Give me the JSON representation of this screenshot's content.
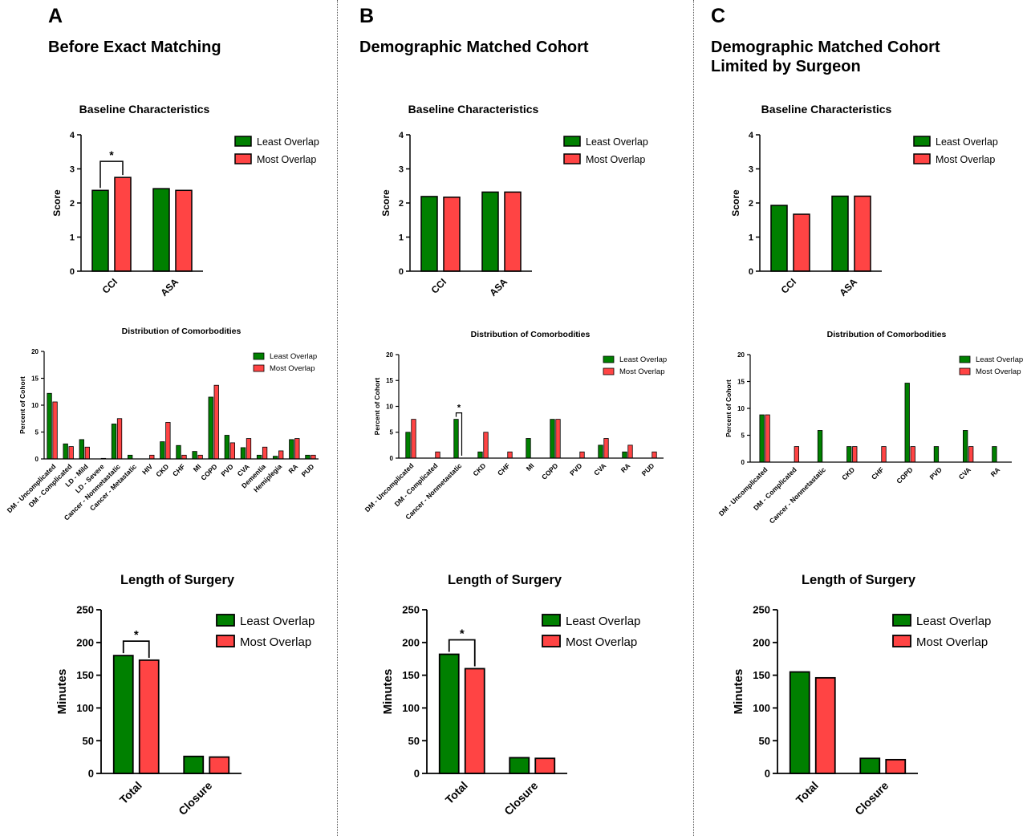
{
  "colors": {
    "least": "#008000",
    "most": "#ff4444",
    "stroke": "#000000"
  },
  "panels": [
    {
      "letter": "A",
      "title_lines": [
        "Before Exact Matching"
      ],
      "baseline": {
        "title": "Baseline Characteristics",
        "ylabel": "Score",
        "ylim": [
          0,
          4
        ],
        "ticks": [
          "0",
          "1",
          "2",
          "3",
          "4"
        ],
        "categories": [
          "CCI",
          "ASA"
        ],
        "series": [
          {
            "name": "Least Overlap",
            "values": [
              2.37,
              2.42
            ]
          },
          {
            "name": "Most Overlap",
            "values": [
              2.75,
              2.37
            ]
          }
        ],
        "annotation": {
          "text": "*",
          "category_index": 0
        }
      },
      "comorb": {
        "title": "Distribution of Comorbodities",
        "ylabel": "Percent of Cohort",
        "ylim": [
          0,
          20
        ],
        "ticks": [
          "0",
          "5",
          "10",
          "15",
          "20"
        ],
        "categories": [
          "DM - Uncomplicated",
          "DM - Complicated",
          "LD - Mild",
          "LD - Severe",
          "Cancer - Nonmetastatic",
          "Cancer - Metastatic",
          "HIV",
          "CKD",
          "CHF",
          "MI",
          "COPD",
          "PVD",
          "CVA",
          "Dementia",
          "Hemiplegia",
          "RA",
          "PUD"
        ],
        "series": [
          {
            "name": "Least Overlap",
            "values": [
              12.2,
              2.8,
              3.6,
              0,
              6.5,
              0.7,
              0,
              3.2,
              2.5,
              1.4,
              11.5,
              4.4,
              2.1,
              0.7,
              0.5,
              3.6,
              0.7
            ]
          },
          {
            "name": "Most Overlap",
            "values": [
              10.6,
              2.3,
              2.2,
              0.1,
              7.5,
              0,
              0.7,
              6.8,
              0.7,
              0.7,
              13.7,
              3.0,
              3.8,
              2.2,
              1.5,
              3.8,
              0.7
            ]
          }
        ],
        "annotation": null
      },
      "surgery": {
        "title": "Length of Surgery",
        "ylabel": "Minutes",
        "ylim": [
          0,
          250
        ],
        "ticks": [
          "0",
          "50",
          "100",
          "150",
          "200",
          "250"
        ],
        "categories": [
          "Total",
          "Closure"
        ],
        "series": [
          {
            "name": "Least Overlap",
            "values": [
              180,
              26
            ]
          },
          {
            "name": "Most Overlap",
            "values": [
              173,
              25
            ]
          }
        ],
        "annotation": {
          "text": "*",
          "category_index": 0
        }
      }
    },
    {
      "letter": "B",
      "title_lines": [
        "Demographic Matched Cohort"
      ],
      "baseline": {
        "title": "Baseline Characteristics",
        "ylabel": "Score",
        "ylim": [
          0,
          4
        ],
        "ticks": [
          "0",
          "1",
          "2",
          "3",
          "4"
        ],
        "categories": [
          "CCI",
          "ASA"
        ],
        "series": [
          {
            "name": "Least Overlap",
            "values": [
              2.19,
              2.32
            ]
          },
          {
            "name": "Most Overlap",
            "values": [
              2.17,
              2.32
            ]
          }
        ],
        "annotation": null
      },
      "comorb": {
        "title": "Distribution of Comorbodities",
        "ylabel": "Percent of Cohort",
        "ylim": [
          0,
          20
        ],
        "ticks": [
          "0",
          "5",
          "10",
          "15",
          "20"
        ],
        "categories": [
          "DM - Uncomplicated",
          "DM - Complicated",
          "Cancer - Nonmetastatic",
          "CKD",
          "CHF",
          "MI",
          "COPD",
          "PVD",
          "CVA",
          "RA",
          "PUD"
        ],
        "series": [
          {
            "name": "Least Overlap",
            "values": [
              5.0,
              0,
              7.5,
              1.2,
              0,
              3.8,
              7.5,
              0,
              2.5,
              1.2,
              0
            ]
          },
          {
            "name": "Most Overlap",
            "values": [
              7.5,
              1.2,
              0,
              5.0,
              1.2,
              0,
              7.5,
              1.2,
              3.8,
              2.5,
              1.2
            ]
          }
        ],
        "annotation": {
          "text": "*",
          "category_index": 2
        }
      },
      "surgery": {
        "title": "Length of Surgery",
        "ylabel": "Minutes",
        "ylim": [
          0,
          250
        ],
        "ticks": [
          "0",
          "50",
          "100",
          "150",
          "200",
          "250"
        ],
        "categories": [
          "Total",
          "Closure"
        ],
        "series": [
          {
            "name": "Least Overlap",
            "values": [
              182,
              24
            ]
          },
          {
            "name": "Most Overlap",
            "values": [
              160,
              23
            ]
          }
        ],
        "annotation": {
          "text": "*",
          "category_index": 0
        }
      }
    },
    {
      "letter": "C",
      "title_lines": [
        "Demographic Matched Cohort",
        "Limited by Surgeon"
      ],
      "baseline": {
        "title": "Baseline Characteristics",
        "ylabel": "Score",
        "ylim": [
          0,
          4
        ],
        "ticks": [
          "0",
          "1",
          "2",
          "3",
          "4"
        ],
        "categories": [
          "CCI",
          "ASA"
        ],
        "series": [
          {
            "name": "Least Overlap",
            "values": [
              1.93,
              2.2
            ]
          },
          {
            "name": "Most Overlap",
            "values": [
              1.67,
              2.2
            ]
          }
        ],
        "annotation": null
      },
      "comorb": {
        "title": "Distribution of Comorbodities",
        "ylabel": "Percent of Cohort",
        "ylim": [
          0,
          20
        ],
        "ticks": [
          "0",
          "5",
          "10",
          "15",
          "20"
        ],
        "categories": [
          "DM - Uncomplicated",
          "DM - Complicated",
          "Cancer - Nonmetastatic",
          "CKD",
          "CHF",
          "COPD",
          "PVD",
          "CVA",
          "RA"
        ],
        "series": [
          {
            "name": "Least Overlap",
            "values": [
              8.8,
              0,
              5.9,
              2.9,
              0,
              14.7,
              2.9,
              5.9,
              2.9
            ]
          },
          {
            "name": "Most Overlap",
            "values": [
              8.8,
              2.9,
              0,
              2.9,
              2.9,
              2.9,
              0,
              2.9,
              0
            ]
          }
        ],
        "annotation": null
      },
      "surgery": {
        "title": "Length of Surgery",
        "ylabel": "Minutes",
        "ylim": [
          0,
          250
        ],
        "ticks": [
          "0",
          "50",
          "100",
          "150",
          "200",
          "250"
        ],
        "categories": [
          "Total",
          "Closure"
        ],
        "series": [
          {
            "name": "Least Overlap",
            "values": [
              155,
              23
            ]
          },
          {
            "name": "Most Overlap",
            "values": [
              146,
              21
            ]
          }
        ],
        "annotation": null
      }
    }
  ],
  "chart_data": [
    {
      "type": "bar",
      "title": "Baseline Characteristics",
      "panel": "A",
      "ylabel": "Score",
      "ylim": [
        0,
        4
      ],
      "categories": [
        "CCI",
        "ASA"
      ],
      "series": [
        {
          "name": "Least Overlap",
          "values": [
            2.37,
            2.42
          ]
        },
        {
          "name": "Most Overlap",
          "values": [
            2.75,
            2.37
          ]
        }
      ]
    },
    {
      "type": "bar",
      "title": "Distribution of Comorbodities",
      "panel": "A",
      "ylabel": "Percent of Cohort",
      "ylim": [
        0,
        20
      ],
      "categories": [
        "DM - Uncomplicated",
        "DM - Complicated",
        "LD - Mild",
        "LD - Severe",
        "Cancer - Nonmetastatic",
        "Cancer - Metastatic",
        "HIV",
        "CKD",
        "CHF",
        "MI",
        "COPD",
        "PVD",
        "CVA",
        "Dementia",
        "Hemiplegia",
        "RA",
        "PUD"
      ],
      "series": [
        {
          "name": "Least Overlap",
          "values": [
            12.2,
            2.8,
            3.6,
            0,
            6.5,
            0.7,
            0,
            3.2,
            2.5,
            1.4,
            11.5,
            4.4,
            2.1,
            0.7,
            0.5,
            3.6,
            0.7
          ]
        },
        {
          "name": "Most Overlap",
          "values": [
            10.6,
            2.3,
            2.2,
            0.1,
            7.5,
            0,
            0.7,
            6.8,
            0.7,
            0.7,
            13.7,
            3.0,
            3.8,
            2.2,
            1.5,
            3.8,
            0.7
          ]
        }
      ]
    },
    {
      "type": "bar",
      "title": "Length of Surgery",
      "panel": "A",
      "ylabel": "Minutes",
      "ylim": [
        0,
        250
      ],
      "categories": [
        "Total",
        "Closure"
      ],
      "series": [
        {
          "name": "Least Overlap",
          "values": [
            180,
            26
          ]
        },
        {
          "name": "Most Overlap",
          "values": [
            173,
            25
          ]
        }
      ]
    },
    {
      "type": "bar",
      "title": "Baseline Characteristics",
      "panel": "B",
      "ylabel": "Score",
      "ylim": [
        0,
        4
      ],
      "categories": [
        "CCI",
        "ASA"
      ],
      "series": [
        {
          "name": "Least Overlap",
          "values": [
            2.19,
            2.32
          ]
        },
        {
          "name": "Most Overlap",
          "values": [
            2.17,
            2.32
          ]
        }
      ]
    },
    {
      "type": "bar",
      "title": "Distribution of Comorbodities",
      "panel": "B",
      "ylabel": "Percent of Cohort",
      "ylim": [
        0,
        20
      ],
      "categories": [
        "DM - Uncomplicated",
        "DM - Complicated",
        "Cancer - Nonmetastatic",
        "CKD",
        "CHF",
        "MI",
        "COPD",
        "PVD",
        "CVA",
        "RA",
        "PUD"
      ],
      "series": [
        {
          "name": "Least Overlap",
          "values": [
            5.0,
            0,
            7.5,
            1.2,
            0,
            3.8,
            7.5,
            0,
            2.5,
            1.2,
            0
          ]
        },
        {
          "name": "Most Overlap",
          "values": [
            7.5,
            1.2,
            0,
            5.0,
            1.2,
            0,
            7.5,
            1.2,
            3.8,
            2.5,
            1.2
          ]
        }
      ]
    },
    {
      "type": "bar",
      "title": "Length of Surgery",
      "panel": "B",
      "ylabel": "Minutes",
      "ylim": [
        0,
        250
      ],
      "categories": [
        "Total",
        "Closure"
      ],
      "series": [
        {
          "name": "Least Overlap",
          "values": [
            182,
            24
          ]
        },
        {
          "name": "Most Overlap",
          "values": [
            160,
            23
          ]
        }
      ]
    },
    {
      "type": "bar",
      "title": "Baseline Characteristics",
      "panel": "C",
      "ylabel": "Score",
      "ylim": [
        0,
        4
      ],
      "categories": [
        "CCI",
        "ASA"
      ],
      "series": [
        {
          "name": "Least Overlap",
          "values": [
            1.93,
            2.2
          ]
        },
        {
          "name": "Most Overlap",
          "values": [
            1.67,
            2.2
          ]
        }
      ]
    },
    {
      "type": "bar",
      "title": "Distribution of Comorbodities",
      "panel": "C",
      "ylabel": "Percent of Cohort",
      "ylim": [
        0,
        20
      ],
      "categories": [
        "DM - Uncomplicated",
        "DM - Complicated",
        "Cancer - Nonmetastatic",
        "CKD",
        "CHF",
        "COPD",
        "PVD",
        "CVA",
        "RA"
      ],
      "series": [
        {
          "name": "Least Overlap",
          "values": [
            8.8,
            0,
            5.9,
            2.9,
            0,
            14.7,
            2.9,
            5.9,
            2.9
          ]
        },
        {
          "name": "Most Overlap",
          "values": [
            8.8,
            2.9,
            0,
            2.9,
            2.9,
            2.9,
            0,
            2.9,
            0
          ]
        }
      ]
    },
    {
      "type": "bar",
      "title": "Length of Surgery",
      "panel": "C",
      "ylabel": "Minutes",
      "ylim": [
        0,
        250
      ],
      "categories": [
        "Total",
        "Closure"
      ],
      "series": [
        {
          "name": "Least Overlap",
          "values": [
            155,
            23
          ]
        },
        {
          "name": "Most Overlap",
          "values": [
            146,
            21
          ]
        }
      ]
    }
  ]
}
